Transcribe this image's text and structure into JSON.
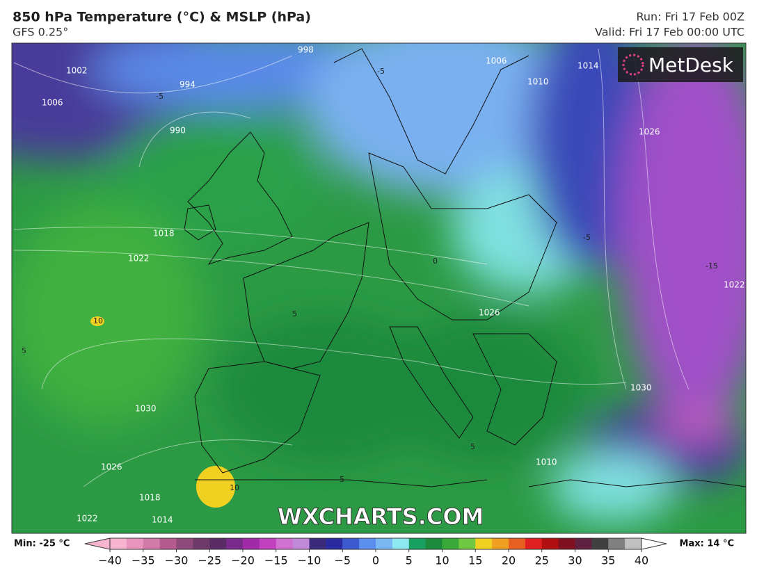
{
  "header": {
    "title": "850 hPa Temperature (°C) & MSLP (hPa)",
    "subtitle": "GFS 0.25°",
    "run": "Run: Fri 17 Feb 00Z",
    "valid": "Valid: Fri 17 Feb 00:00 UTC"
  },
  "logo": "MetDesk",
  "watermark": "WXCHARTS.COM",
  "isobar_labels": [
    "1002",
    "1006",
    "994",
    "998",
    "990",
    "1018",
    "1022",
    "1030",
    "1026",
    "1018",
    "1022",
    "1014",
    "1006",
    "1010",
    "1014",
    "1026",
    "1026",
    "1030",
    "1022",
    "1010"
  ],
  "temperature_labels": [
    "-5",
    "-5",
    "10",
    "5",
    "5",
    "0",
    "-5",
    "-15",
    "5",
    "10",
    "5"
  ],
  "legend": {
    "min": "Min: -25 °C",
    "max": "Max: 14 °C",
    "ticks": [
      {
        "value": -40,
        "label": "−40"
      },
      {
        "value": -35,
        "label": "−35"
      },
      {
        "value": -30,
        "label": "−30"
      },
      {
        "value": -25,
        "label": "−25"
      },
      {
        "value": -20,
        "label": "−20"
      },
      {
        "value": -15,
        "label": "−15"
      },
      {
        "value": -10,
        "label": "−10"
      },
      {
        "value": -5,
        "label": "−5"
      },
      0,
      5,
      10,
      15,
      20,
      25,
      30,
      35,
      40
    ],
    "range": [
      -40,
      40
    ],
    "colors": [
      "#f6b4cf",
      "#e894bd",
      "#d27aa8",
      "#b45a8e",
      "#8e4a7a",
      "#6e3a6a",
      "#5a2c66",
      "#7a2a8a",
      "#a02aa8",
      "#c040c0",
      "#d070d0",
      "#c08ad8",
      "#3a2a7a",
      "#2a2aa0",
      "#3c5ad0",
      "#5c8ef0",
      "#7ab8f4",
      "#8ee8f0",
      "#18a060",
      "#1c8a3c",
      "#38a838",
      "#70c840",
      "#f0d020",
      "#f0a020",
      "#e86020",
      "#e02020",
      "#b01010",
      "#801020",
      "#602040",
      "#404040",
      "#808080",
      "#c0c0c0"
    ]
  }
}
